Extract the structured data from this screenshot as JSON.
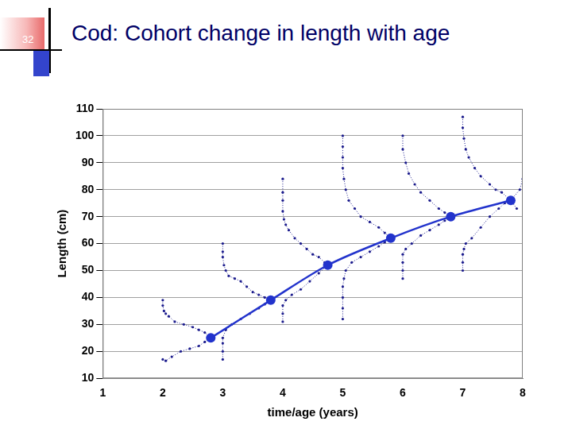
{
  "slide": {
    "number": 32
  },
  "chart_data": {
    "type": "scatter",
    "title": "Cod: Cohort change in length with age",
    "x_label": "time/age (years)",
    "y_label": "Length (cm)",
    "xlim": [
      1,
      8
    ],
    "xticks": [
      1,
      2,
      3,
      4,
      5,
      6,
      7,
      8
    ],
    "ylim": [
      10,
      110
    ],
    "yticks": [
      10,
      20,
      30,
      40,
      50,
      60,
      70,
      80,
      90,
      100,
      110
    ],
    "grid": "y",
    "series": [
      {
        "type": "scatter",
        "color": "#1a1a8c",
        "marker": "point",
        "line_style": "dotted",
        "x": [
          2.0,
          2.0,
          2.02,
          2.05,
          2.1,
          2.2,
          2.35,
          2.5,
          2.6,
          2.7,
          2.8
        ],
        "values": [
          39,
          37,
          35,
          34,
          33,
          31,
          30,
          29,
          28,
          27,
          25
        ]
      },
      {
        "type": "scatter",
        "color": "#1a1a8c",
        "marker": "point",
        "line_style": "dotted",
        "x": [
          2.0,
          2.05,
          2.15,
          2.3,
          2.45,
          2.6,
          2.7,
          2.8
        ],
        "values": [
          17,
          16.5,
          18,
          20,
          21,
          22,
          23.5,
          25
        ]
      },
      {
        "type": "scatter",
        "color": "#1a1a8c",
        "marker": "point",
        "line_style": "dotted",
        "x": [
          3.0,
          3.0,
          3.0,
          3.02,
          3.05,
          3.1,
          3.2,
          3.3,
          3.4,
          3.5,
          3.6,
          3.7,
          3.8
        ],
        "values": [
          60,
          57,
          55,
          52,
          50,
          48,
          47,
          46,
          44,
          42,
          41,
          40,
          39
        ]
      },
      {
        "type": "scatter",
        "color": "#1a1a8c",
        "marker": "point",
        "line_style": "dotted",
        "x": [
          3.0,
          3.0,
          3.0,
          3.0,
          3.05,
          3.15,
          3.3,
          3.45,
          3.6,
          3.7,
          3.8
        ],
        "values": [
          17,
          20,
          23,
          25,
          28,
          30,
          32,
          34,
          36,
          37.5,
          39
        ]
      },
      {
        "type": "scatter",
        "color": "#1a1a8c",
        "marker": "point",
        "line_style": "dotted",
        "x": [
          4.0,
          4.0,
          4.0,
          4.0,
          4.02,
          4.05,
          4.1,
          4.2,
          4.3,
          4.4,
          4.5,
          4.6,
          4.7,
          4.75
        ],
        "values": [
          84,
          79,
          76,
          72,
          69,
          67,
          65,
          62,
          60,
          58,
          56,
          55,
          53,
          52
        ]
      },
      {
        "type": "scatter",
        "color": "#1a1a8c",
        "marker": "point",
        "line_style": "dotted",
        "x": [
          4.0,
          4.0,
          4.0,
          4.05,
          4.15,
          4.3,
          4.45,
          4.6,
          4.75
        ],
        "values": [
          31,
          34,
          37,
          39,
          41,
          43,
          46,
          49,
          52
        ]
      },
      {
        "type": "scatter",
        "color": "#1a1a8c",
        "marker": "point",
        "line_style": "dotted",
        "x": [
          5.0,
          5.0,
          5.0,
          5.0,
          5.02,
          5.05,
          5.1,
          5.2,
          5.3,
          5.45,
          5.6,
          5.7,
          5.8
        ],
        "values": [
          100,
          96,
          92,
          88,
          84,
          80,
          76,
          73,
          70,
          68,
          66,
          64,
          62
        ]
      },
      {
        "type": "scatter",
        "color": "#1a1a8c",
        "marker": "point",
        "line_style": "dotted",
        "x": [
          5.0,
          5.0,
          5.0,
          5.0,
          5.02,
          5.05,
          5.15,
          5.3,
          5.45,
          5.6,
          5.7,
          5.8
        ],
        "values": [
          32,
          36,
          40,
          44,
          47,
          50,
          53,
          55,
          57,
          59,
          60.5,
          62
        ]
      },
      {
        "type": "scatter",
        "color": "#1a1a8c",
        "marker": "point",
        "line_style": "dotted",
        "x": [
          6.0,
          6.0,
          6.05,
          6.1,
          6.2,
          6.3,
          6.45,
          6.6,
          6.7,
          6.8
        ],
        "values": [
          100,
          95,
          90,
          86,
          82,
          79,
          76,
          73,
          71.5,
          70
        ]
      },
      {
        "type": "scatter",
        "color": "#1a1a8c",
        "marker": "point",
        "line_style": "dotted",
        "x": [
          6.0,
          6.0,
          6.0,
          6.0,
          6.05,
          6.15,
          6.3,
          6.45,
          6.6,
          6.7,
          6.8
        ],
        "values": [
          47,
          50,
          53,
          56,
          58,
          60,
          63,
          65,
          67,
          68.5,
          70
        ]
      },
      {
        "type": "scatter",
        "color": "#1a1a8c",
        "marker": "point",
        "line_style": "dotted",
        "x": [
          7.0,
          7.0,
          7.02,
          7.05,
          7.1,
          7.2,
          7.3,
          7.45,
          7.55,
          7.65,
          7.8
        ],
        "values": [
          107,
          103,
          99,
          95,
          92,
          88,
          85,
          82,
          80,
          79,
          76
        ]
      },
      {
        "type": "scatter",
        "color": "#1a1a8c",
        "marker": "point",
        "line_style": "dotted",
        "x": [
          7.0,
          7.0,
          7.0,
          7.02,
          7.05,
          7.15,
          7.3,
          7.45,
          7.6,
          7.7,
          7.8
        ],
        "values": [
          50,
          53,
          56,
          58,
          60,
          62,
          66,
          70,
          73,
          75,
          76
        ]
      },
      {
        "type": "scatter",
        "color": "#1a1a8c",
        "marker": "point",
        "line_style": "dotted",
        "x": [
          8.0,
          7.95,
          7.8
        ],
        "values": [
          84,
          80,
          76
        ]
      },
      {
        "type": "scatter",
        "color": "#1a1a8c",
        "marker": "point",
        "line_style": "dotted",
        "x": [
          7.9,
          7.8
        ],
        "values": [
          73,
          76
        ]
      },
      {
        "type": "line",
        "color": "#2233cc",
        "marker": "circle",
        "line_style": "solid",
        "x": [
          2.8,
          3.8,
          4.75,
          5.8,
          6.8,
          7.8
        ],
        "values": [
          25,
          39,
          52,
          62,
          70,
          76
        ]
      }
    ]
  }
}
